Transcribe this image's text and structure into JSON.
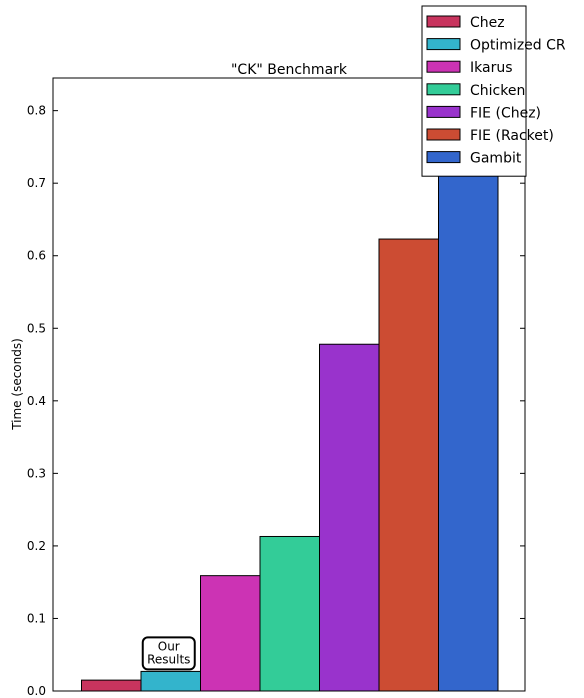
{
  "chart_data": {
    "type": "bar",
    "title": "\"CK\" Benchmark",
    "xlabel": "",
    "ylabel": "Time (seconds)",
    "ylim": [
      0,
      0.845
    ],
    "yticks": [
      "0.0",
      "0.1",
      "0.2",
      "0.3",
      "0.4",
      "0.5",
      "0.6",
      "0.7",
      "0.8"
    ],
    "series": [
      {
        "name": "Chez",
        "value": 0.015,
        "color": "#C8345E"
      },
      {
        "name": "Optimized CR",
        "value": 0.027,
        "color": "#33B4CC"
      },
      {
        "name": "Ikarus",
        "value": 0.159,
        "color": "#CC33B4"
      },
      {
        "name": "Chicken",
        "value": 0.213,
        "color": "#33CC98"
      },
      {
        "name": "FIE (Chez)",
        "value": 0.478,
        "color": "#9933CC"
      },
      {
        "name": "FIE (Racket)",
        "value": 0.623,
        "color": "#CC4C33"
      },
      {
        "name": "Gambit",
        "value": 0.85,
        "color": "#3366CC"
      }
    ],
    "annotation": {
      "lines": [
        "Our",
        "Results"
      ],
      "target": "Optimized CR"
    },
    "legend_position": "top-right",
    "grid": false
  }
}
